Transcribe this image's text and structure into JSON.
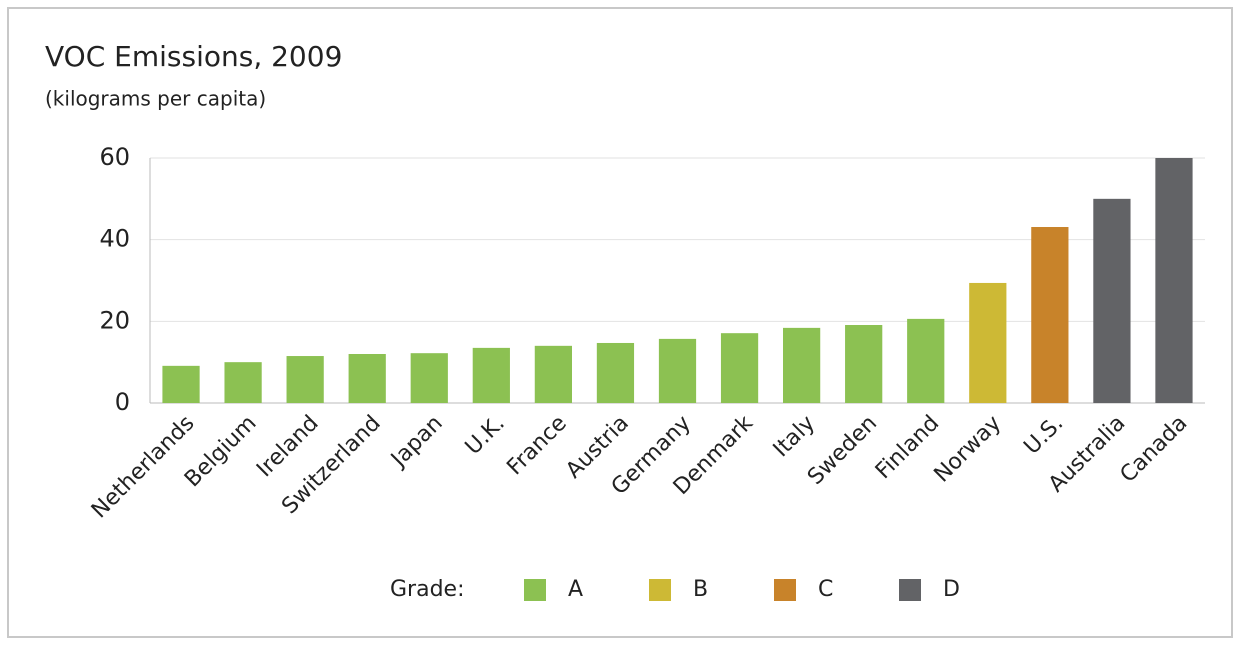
{
  "chart_data": {
    "type": "bar",
    "title": "VOC Emissions, 2009",
    "subtitle": "(kilograms per capita)",
    "categories": [
      "Netherlands",
      "Belgium",
      "Ireland",
      "Switzerland",
      "Japan",
      "U.K.",
      "France",
      "Austria",
      "Germany",
      "Denmark",
      "Italy",
      "Sweden",
      "Finland",
      "Norway",
      "U.S.",
      "Australia",
      "Canada"
    ],
    "series": [
      {
        "name": "A",
        "color": "#8cc152",
        "values": [
          9.1,
          10,
          11.5,
          12,
          12.2,
          13.5,
          14,
          14.7,
          15.7,
          17.1,
          18.4,
          19.1,
          20.6,
          null,
          null,
          null,
          null
        ]
      },
      {
        "name": "B",
        "color": "#cdb935",
        "values": [
          null,
          null,
          null,
          null,
          null,
          null,
          null,
          null,
          null,
          null,
          null,
          null,
          null,
          29.4,
          null,
          null,
          null
        ]
      },
      {
        "name": "C",
        "color": "#c8832a",
        "values": [
          null,
          null,
          null,
          null,
          null,
          null,
          null,
          null,
          null,
          null,
          null,
          null,
          null,
          null,
          43.1,
          null,
          null
        ]
      },
      {
        "name": "D",
        "color": "#626366",
        "values": [
          null,
          null,
          null,
          null,
          null,
          null,
          null,
          null,
          null,
          null,
          null,
          null,
          null,
          null,
          null,
          50,
          60
        ]
      }
    ],
    "legend_title": "Grade:",
    "ylim": [
      0,
      60
    ],
    "yticks": [
      0,
      20,
      40,
      60
    ],
    "grid": true
  }
}
